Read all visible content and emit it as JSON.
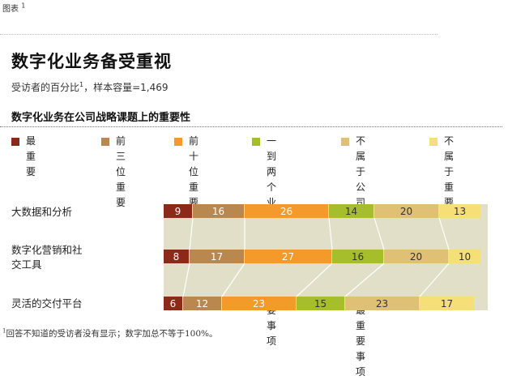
{
  "figure_label": "图表",
  "figure_number": "1",
  "title": "数字化业务备受重视",
  "subtitle": "受访者的百分比",
  "subtitle_note_mark": "1",
  "subtitle_sample": "，样本容量=1,469",
  "footnote_mark": "1",
  "footnote": "回答不知道的受访者没有显示；数字加总不等于100%。",
  "chart_data": {
    "type": "bar",
    "stacked": true,
    "orientation": "horizontal",
    "title": "数字化业务在公司战略课题上的重要性",
    "xlim": [
      0,
      100
    ],
    "categories": [
      "大数据和分析",
      "数字化营销和社交工具",
      "灵活的交付平台"
    ],
    "category_lines": [
      [
        "大数据和分析"
      ],
      [
        "数字化营销和社",
        "交工具"
      ],
      [
        "灵活的交付平台"
      ]
    ],
    "series": [
      {
        "name": "最重要",
        "name_lines": [
          "最重要"
        ],
        "color": "#8b2a16",
        "label_color": "#ffffff",
        "values": [
          9,
          8,
          6
        ]
      },
      {
        "name": "前三位重要",
        "name_lines": [
          "前三位",
          "重要"
        ],
        "color": "#b8884f",
        "label_color": "#ffffff",
        "values": [
          16,
          17,
          12
        ]
      },
      {
        "name": "前十位重要",
        "name_lines": [
          "前十位",
          "重要"
        ],
        "color": "#f39a2a",
        "label_color": "#ffffff",
        "values": [
          26,
          27,
          23
        ]
      },
      {
        "name": "一到两个业务单元的最重要事项",
        "name_lines": [
          "一到两个业",
          "务单元的最",
          "重要事项"
        ],
        "color": "#a6bd2c",
        "label_color": "#333333",
        "values": [
          14,
          16,
          15
        ]
      },
      {
        "name": "不属于公司或业务单元的最重要事项",
        "name_lines": [
          "不属于公司",
          "或业务单元",
          "的最重要事项"
        ],
        "color": "#dfc074",
        "label_color": "#333333",
        "values": [
          20,
          20,
          23
        ]
      },
      {
        "name": "不属于重要议程",
        "name_lines": [
          "不属于重",
          "要议程"
        ],
        "color": "#f7df78",
        "label_color": "#333333",
        "values": [
          13,
          10,
          17
        ]
      }
    ],
    "band_color": "#e2dfc8"
  }
}
